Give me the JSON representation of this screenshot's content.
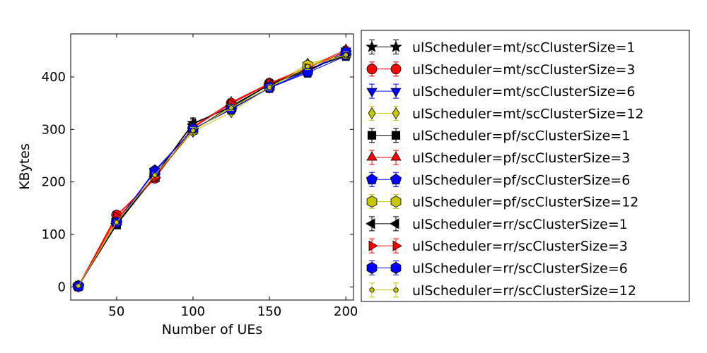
{
  "chart_data": {
    "type": "line",
    "xlabel": "Number of UEs",
    "ylabel": "KBytes",
    "xlim": [
      20,
      205
    ],
    "ylim": [
      -25,
      482
    ],
    "xticks": [
      50,
      100,
      150,
      200
    ],
    "yticks": [
      0,
      100,
      200,
      300,
      400
    ],
    "grid": false,
    "legend_placement": "outside-right",
    "x": [
      25,
      50,
      75,
      100,
      125,
      150,
      175,
      200
    ],
    "series": [
      {
        "name": "ulScheduler=mt/scClusterSize=1",
        "color": "#000000",
        "marker": "star",
        "values": [
          2,
          120,
          212,
          312,
          342,
          385,
          415,
          440
        ],
        "err": [
          2,
          4,
          4,
          10,
          6,
          5,
          6,
          8
        ]
      },
      {
        "name": "ulScheduler=mt/scClusterSize=3",
        "color": "#ff0000",
        "marker": "circle",
        "values": [
          2,
          137,
          207,
          303,
          350,
          388,
          418,
          448
        ],
        "err": [
          2,
          4,
          4,
          6,
          6,
          5,
          6,
          6
        ]
      },
      {
        "name": "ulScheduler=mt/scClusterSize=6",
        "color": "#0000ff",
        "marker": "triangle-down",
        "values": [
          1,
          125,
          220,
          300,
          340,
          380,
          412,
          450
        ],
        "err": [
          2,
          4,
          4,
          6,
          6,
          5,
          6,
          6
        ]
      },
      {
        "name": "ulScheduler=mt/scClusterSize=12",
        "color": "#c8c800",
        "marker": "diamond",
        "values": [
          2,
          126,
          212,
          296,
          333,
          381,
          425,
          443
        ],
        "err": [
          2,
          4,
          4,
          6,
          5,
          5,
          6,
          6
        ]
      },
      {
        "name": "ulScheduler=pf/scClusterSize=1",
        "color": "#000000",
        "marker": "square",
        "values": [
          1,
          118,
          210,
          298,
          345,
          385,
          412,
          446
        ],
        "err": [
          2,
          4,
          4,
          6,
          6,
          5,
          6,
          6
        ]
      },
      {
        "name": "ulScheduler=pf/scClusterSize=3",
        "color": "#ff0000",
        "marker": "triangle-up",
        "values": [
          2,
          130,
          206,
          305,
          352,
          388,
          418,
          452
        ],
        "err": [
          2,
          4,
          4,
          6,
          6,
          5,
          6,
          6
        ]
      },
      {
        "name": "ulScheduler=pf/scClusterSize=6",
        "color": "#0000ff",
        "marker": "pentagon",
        "values": [
          1,
          122,
          222,
          300,
          338,
          379,
          408,
          440
        ],
        "err": [
          2,
          4,
          4,
          6,
          6,
          5,
          6,
          6
        ]
      },
      {
        "name": "ulScheduler=pf/scClusterSize=12",
        "color": "#c8c800",
        "marker": "hexagon",
        "values": [
          2,
          124,
          214,
          298,
          342,
          380,
          422,
          444
        ],
        "err": [
          2,
          4,
          4,
          6,
          5,
          5,
          6,
          6
        ]
      },
      {
        "name": "ulScheduler=rr/scClusterSize=1",
        "color": "#000000",
        "marker": "triangle-left",
        "values": [
          2,
          121,
          211,
          310,
          344,
          386,
          414,
          442
        ],
        "err": [
          2,
          4,
          4,
          10,
          6,
          5,
          6,
          8
        ]
      },
      {
        "name": "ulScheduler=rr/scClusterSize=3",
        "color": "#ff0000",
        "marker": "triangle-right",
        "values": [
          2,
          134,
          208,
          304,
          349,
          387,
          417,
          449
        ],
        "err": [
          2,
          4,
          4,
          6,
          6,
          5,
          6,
          6
        ]
      },
      {
        "name": "ulScheduler=rr/scClusterSize=6",
        "color": "#0000ff",
        "marker": "hexagon",
        "values": [
          1,
          123,
          219,
          301,
          339,
          380,
          410,
          447
        ],
        "err": [
          2,
          4,
          4,
          6,
          6,
          5,
          6,
          6
        ]
      },
      {
        "name": "ulScheduler=rr/scClusterSize=12",
        "color": "#c8c800",
        "marker": "point",
        "values": [
          2,
          123,
          213,
          298,
          341,
          380,
          420,
          442
        ],
        "err": [
          2,
          4,
          4,
          6,
          5,
          5,
          6,
          6
        ]
      }
    ]
  }
}
